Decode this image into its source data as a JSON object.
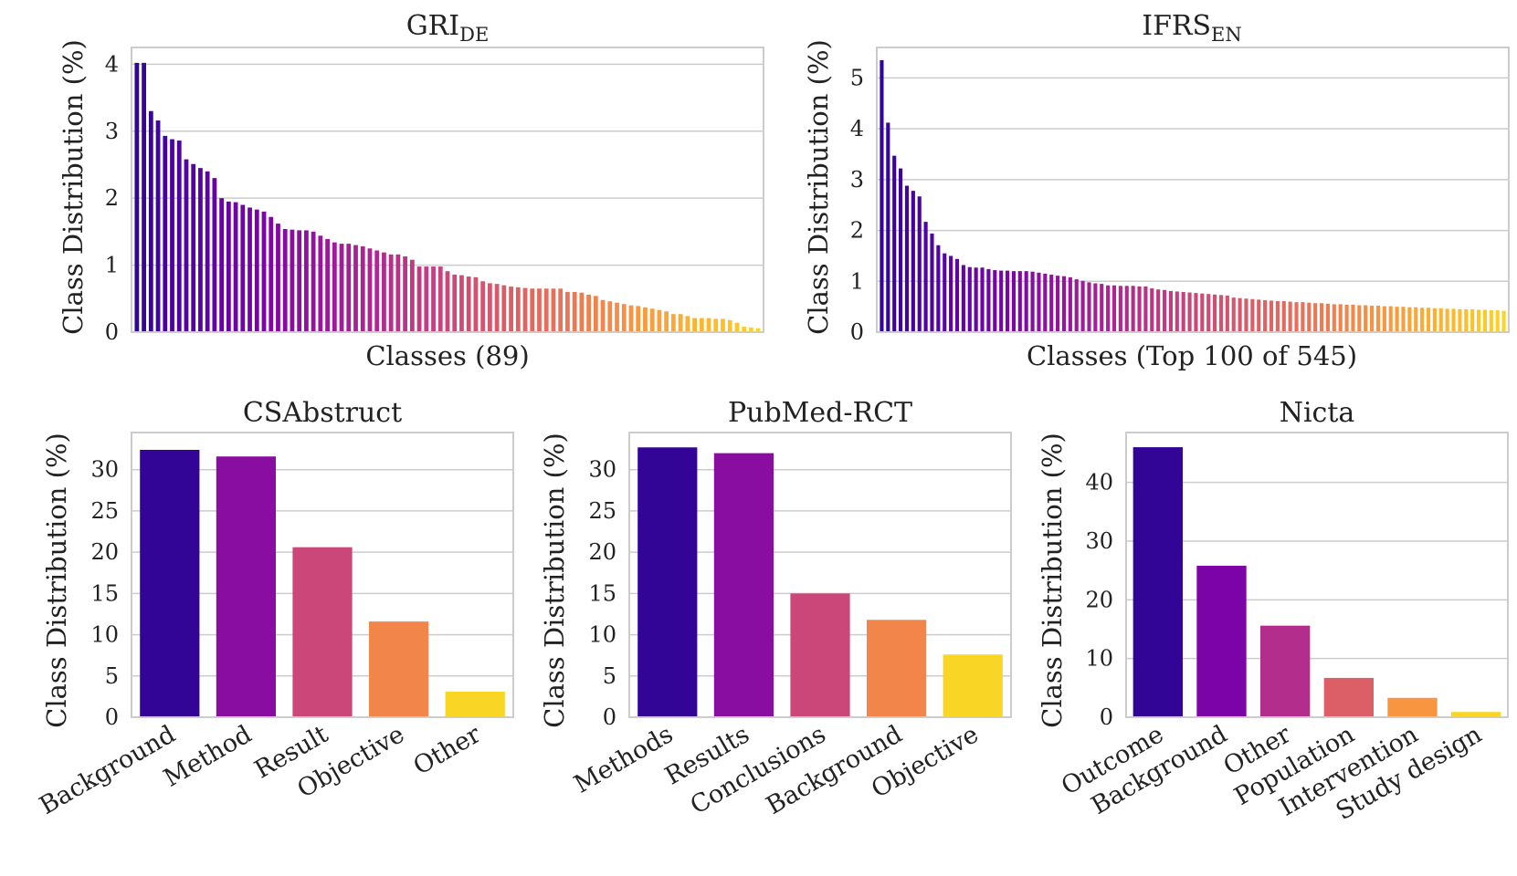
{
  "figure": {
    "chart_data": [
      {
        "type": "bar",
        "title": "GRI",
        "title_sub": "DE",
        "xlabel": "Classes (89)",
        "ylabel": "Class Distribution (%)",
        "ylim": [
          0,
          4.25
        ],
        "yticks": [
          0,
          1,
          2,
          3,
          4
        ],
        "grid": true,
        "values": [
          4.02,
          4.02,
          3.3,
          3.16,
          2.93,
          2.88,
          2.86,
          2.58,
          2.51,
          2.45,
          2.4,
          2.3,
          2.0,
          1.95,
          1.94,
          1.9,
          1.86,
          1.83,
          1.8,
          1.72,
          1.62,
          1.54,
          1.53,
          1.52,
          1.52,
          1.5,
          1.44,
          1.39,
          1.34,
          1.32,
          1.32,
          1.3,
          1.28,
          1.25,
          1.22,
          1.19,
          1.16,
          1.16,
          1.13,
          1.08,
          0.98,
          0.98,
          0.98,
          0.98,
          0.91,
          0.86,
          0.85,
          0.83,
          0.82,
          0.76,
          0.73,
          0.72,
          0.7,
          0.68,
          0.67,
          0.66,
          0.65,
          0.65,
          0.65,
          0.65,
          0.65,
          0.6,
          0.6,
          0.59,
          0.56,
          0.54,
          0.48,
          0.46,
          0.44,
          0.42,
          0.4,
          0.39,
          0.37,
          0.35,
          0.33,
          0.31,
          0.27,
          0.27,
          0.24,
          0.21,
          0.21,
          0.21,
          0.2,
          0.2,
          0.18,
          0.14,
          0.08,
          0.07,
          0.06
        ]
      },
      {
        "type": "bar",
        "title": "IFRS",
        "title_sub": "EN",
        "xlabel": "Classes (Top 100 of 545)",
        "ylabel": "Class Distribution (%)",
        "ylim": [
          0,
          5.6
        ],
        "yticks": [
          0,
          1,
          2,
          3,
          4,
          5
        ],
        "grid": true,
        "values": [
          5.35,
          4.12,
          3.47,
          3.22,
          2.88,
          2.78,
          2.67,
          2.17,
          1.94,
          1.71,
          1.55,
          1.5,
          1.44,
          1.32,
          1.28,
          1.27,
          1.27,
          1.24,
          1.22,
          1.21,
          1.21,
          1.2,
          1.2,
          1.2,
          1.19,
          1.17,
          1.15,
          1.13,
          1.11,
          1.1,
          1.08,
          1.04,
          1.01,
          0.98,
          0.96,
          0.95,
          0.92,
          0.92,
          0.91,
          0.91,
          0.91,
          0.9,
          0.9,
          0.86,
          0.84,
          0.83,
          0.81,
          0.8,
          0.79,
          0.78,
          0.77,
          0.76,
          0.75,
          0.74,
          0.73,
          0.72,
          0.68,
          0.67,
          0.66,
          0.65,
          0.64,
          0.63,
          0.62,
          0.61,
          0.61,
          0.6,
          0.59,
          0.59,
          0.58,
          0.57,
          0.57,
          0.56,
          0.55,
          0.55,
          0.54,
          0.54,
          0.53,
          0.53,
          0.52,
          0.52,
          0.51,
          0.51,
          0.5,
          0.5,
          0.49,
          0.49,
          0.48,
          0.48,
          0.47,
          0.47,
          0.46,
          0.46,
          0.45,
          0.45,
          0.45,
          0.44,
          0.44,
          0.43,
          0.43,
          0.42
        ]
      },
      {
        "type": "bar",
        "title": "CSAbstruct",
        "xlabel": "",
        "ylabel": "Class Distribution (%)",
        "ylim": [
          0,
          34.5
        ],
        "yticks": [
          0,
          5,
          10,
          15,
          20,
          25,
          30
        ],
        "grid": true,
        "categories": [
          "Background",
          "Method",
          "Result",
          "Objective",
          "Other"
        ],
        "values": [
          32.4,
          31.6,
          20.6,
          11.6,
          3.1
        ]
      },
      {
        "type": "bar",
        "title": "PubMed-RCT",
        "xlabel": "",
        "ylabel": "Class Distribution (%)",
        "ylim": [
          0,
          34.5
        ],
        "yticks": [
          0,
          5,
          10,
          15,
          20,
          25,
          30
        ],
        "grid": true,
        "categories": [
          "Methods",
          "Results",
          "Conclusions",
          "Background",
          "Objective"
        ],
        "values": [
          32.7,
          32.0,
          15.0,
          11.8,
          7.6
        ]
      },
      {
        "type": "bar",
        "title": "Nicta",
        "xlabel": "",
        "ylabel": "Class Distribution (%)",
        "ylim": [
          0,
          48.5
        ],
        "yticks": [
          0,
          10,
          20,
          30,
          40
        ],
        "grid": true,
        "categories": [
          "Outcome",
          "Background",
          "Other",
          "Population",
          "Intervention",
          "Study design"
        ],
        "values": [
          46.0,
          25.8,
          15.6,
          6.7,
          3.3,
          0.9
        ]
      }
    ]
  }
}
